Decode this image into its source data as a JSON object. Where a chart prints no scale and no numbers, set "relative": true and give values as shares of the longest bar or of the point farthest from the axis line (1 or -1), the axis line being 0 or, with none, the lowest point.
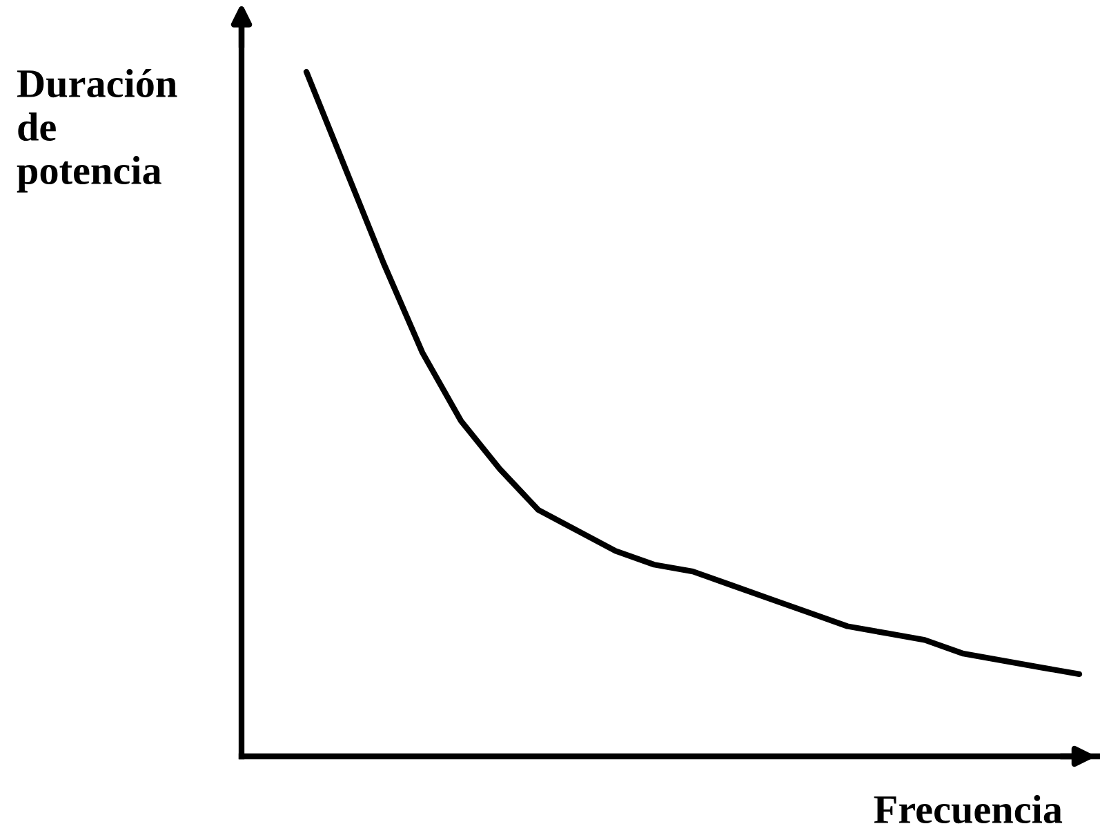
{
  "chart_data": {
    "type": "line",
    "relative": true,
    "xlabel": "Frecuencia",
    "ylabel": "Duración\nde\npotencia",
    "categories": [
      null,
      null,
      null,
      null,
      null,
      null,
      null,
      null,
      null,
      null,
      null,
      null,
      null,
      null,
      null,
      null,
      null,
      null,
      null,
      null,
      null
    ],
    "series": [
      {
        "color": "#000000",
        "values": [
          1.0,
          0.86,
          0.72,
          0.59,
          0.49,
          0.42,
          0.36,
          0.33,
          0.3,
          0.28,
          0.27,
          0.25,
          0.23,
          0.21,
          0.19,
          0.18,
          0.17,
          0.15,
          0.14,
          0.13,
          0.12
        ]
      }
    ],
    "legend": false,
    "marker": "none",
    "line_style": "solid"
  }
}
